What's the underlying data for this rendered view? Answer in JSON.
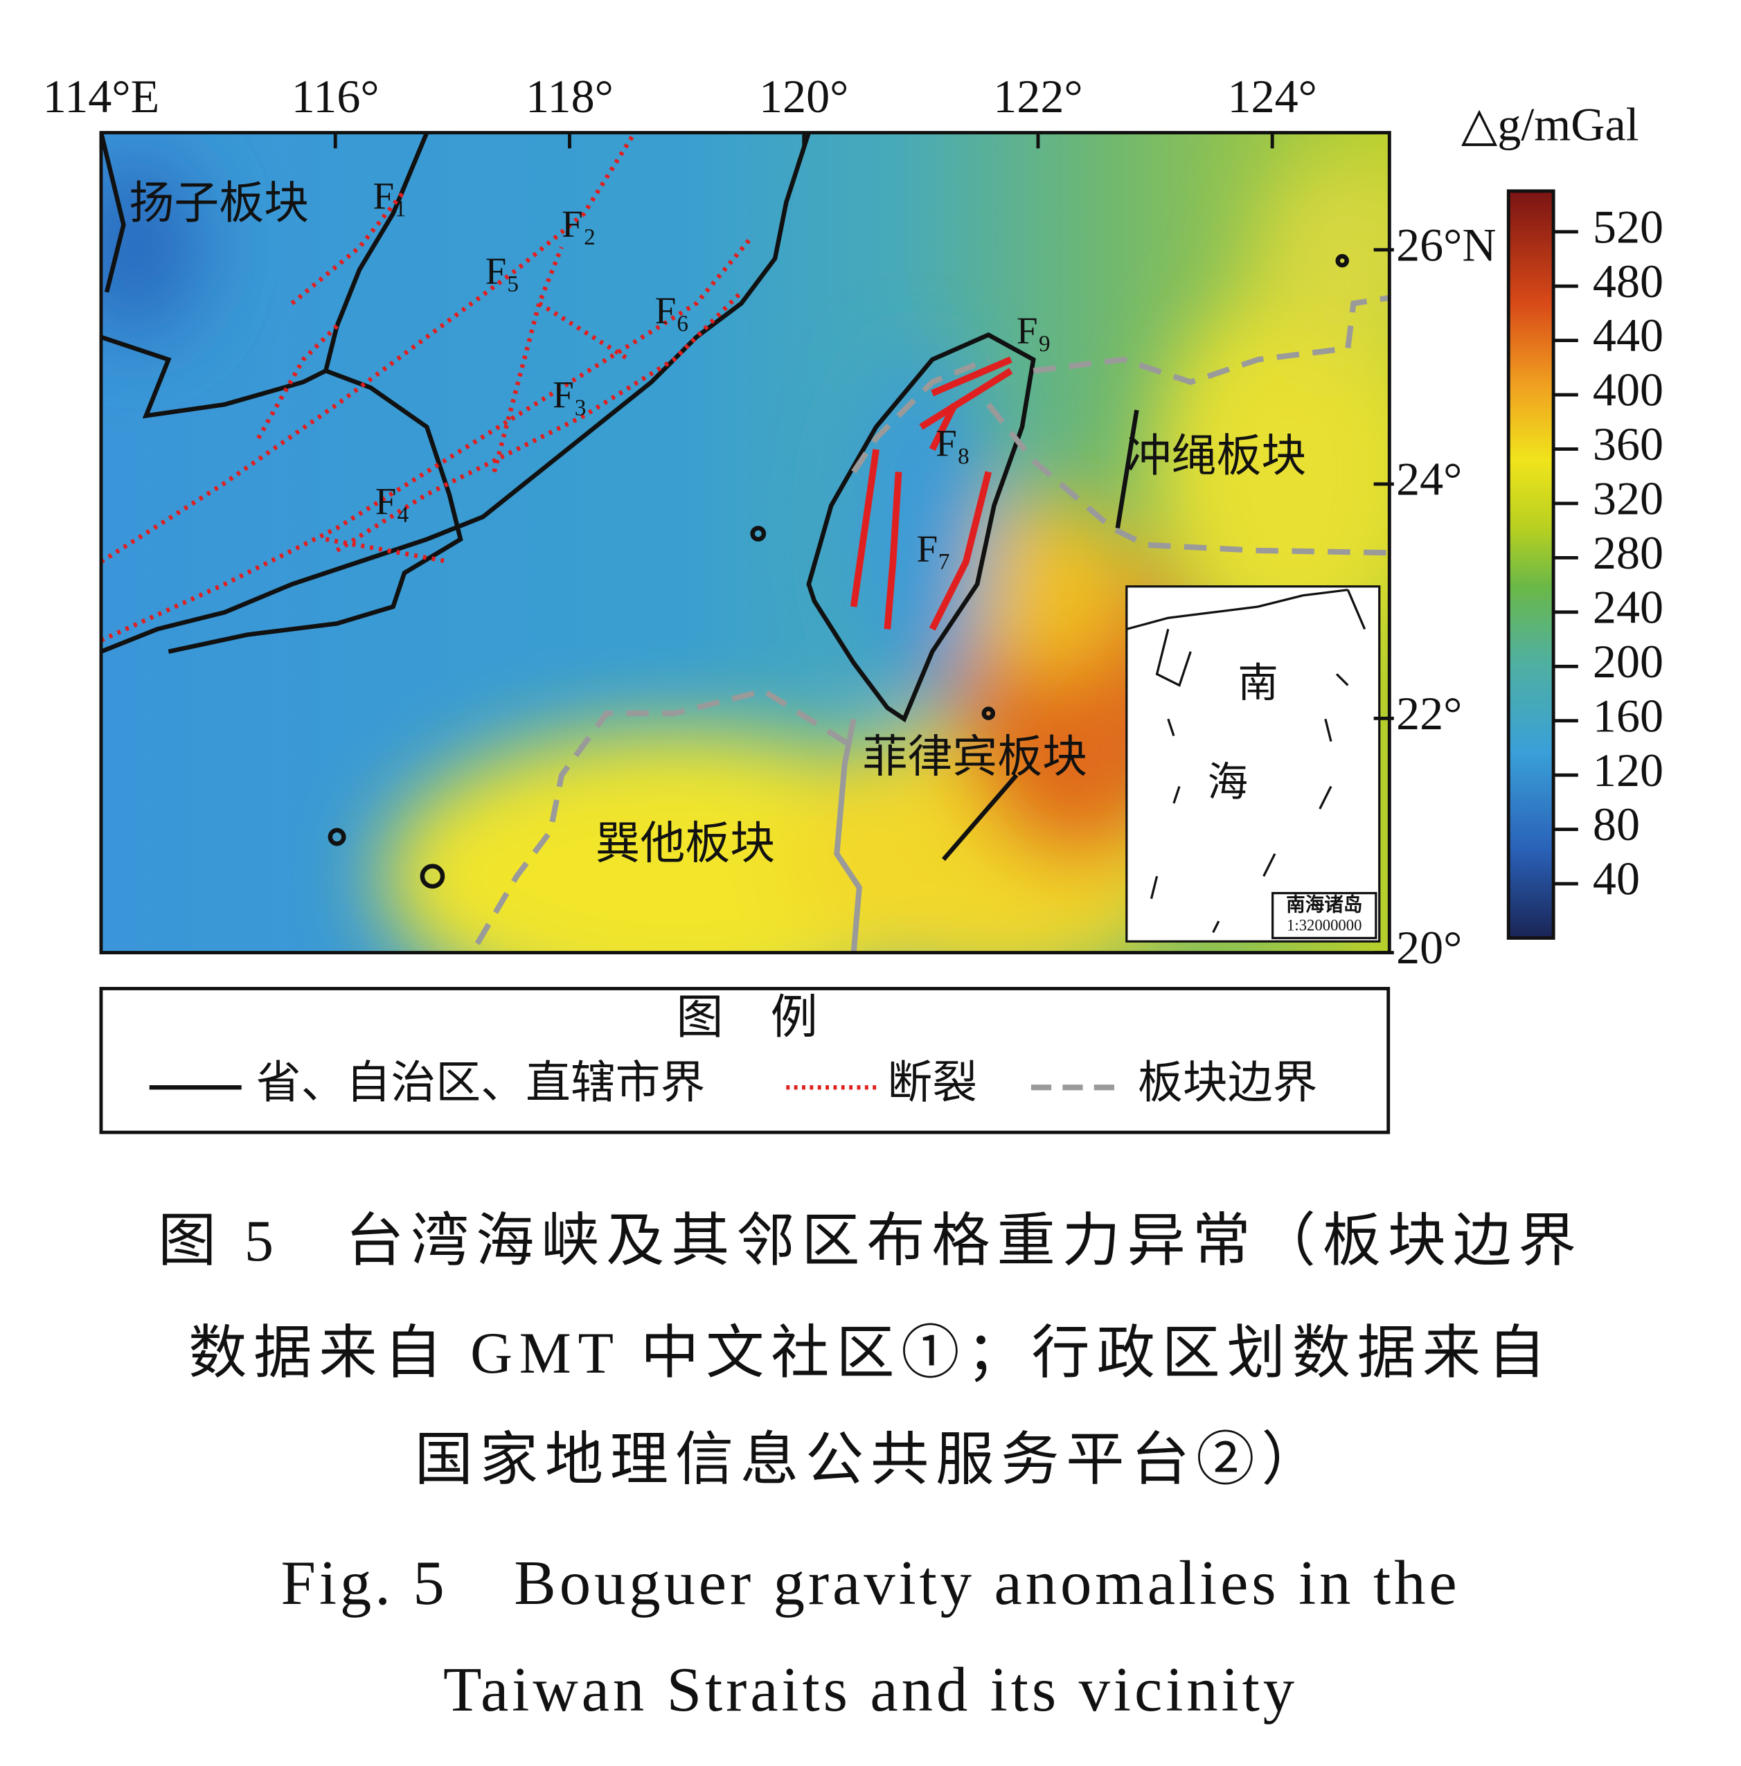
{
  "map": {
    "xlim": [
      114,
      125
    ],
    "ylim": [
      20,
      27
    ],
    "xticks": [
      {
        "value": 114,
        "label": "114°E"
      },
      {
        "value": 116,
        "label": "116°"
      },
      {
        "value": 118,
        "label": "118°"
      },
      {
        "value": 120,
        "label": "120°"
      },
      {
        "value": 122,
        "label": "122°"
      },
      {
        "value": 124,
        "label": "124°"
      }
    ],
    "yticks": [
      {
        "value": 20,
        "label": "20°"
      },
      {
        "value": 22,
        "label": "22°"
      },
      {
        "value": 24,
        "label": "24°"
      },
      {
        "value": 26,
        "label": "26°N"
      }
    ],
    "labels": {
      "yangtze": "扬子板块",
      "okinawa": "冲绳板块",
      "philippine": "菲律宾板块",
      "sunda": "巽他板块"
    },
    "faults": [
      "F₁",
      "F₂",
      "F₃",
      "F₄",
      "F₅",
      "F₆",
      "F₇",
      "F₈",
      "F₉"
    ],
    "inset": {
      "south": "南",
      "sea": "海",
      "islands": "南海诸岛",
      "scale": "1:32000000"
    }
  },
  "colorbar": {
    "title": "△g/mGal",
    "range": [
      0,
      550
    ],
    "ticks": [
      40,
      80,
      120,
      160,
      200,
      240,
      280,
      320,
      360,
      400,
      440,
      480,
      520
    ]
  },
  "legend": {
    "title": "图　例",
    "items": [
      "省、自治区、直辖市界",
      "断裂",
      "板块边界"
    ]
  },
  "caption": {
    "zh": [
      "图 5　台湾海峡及其邻区布格重力异常（板块边界",
      "数据来自 GMT 中文社区①；行政区划数据来自",
      "国家地理信息公共服务平台②）"
    ],
    "en": [
      "Fig. 5　Bouguer gravity anomalies in the",
      "Taiwan Straits and its vicinity"
    ]
  }
}
